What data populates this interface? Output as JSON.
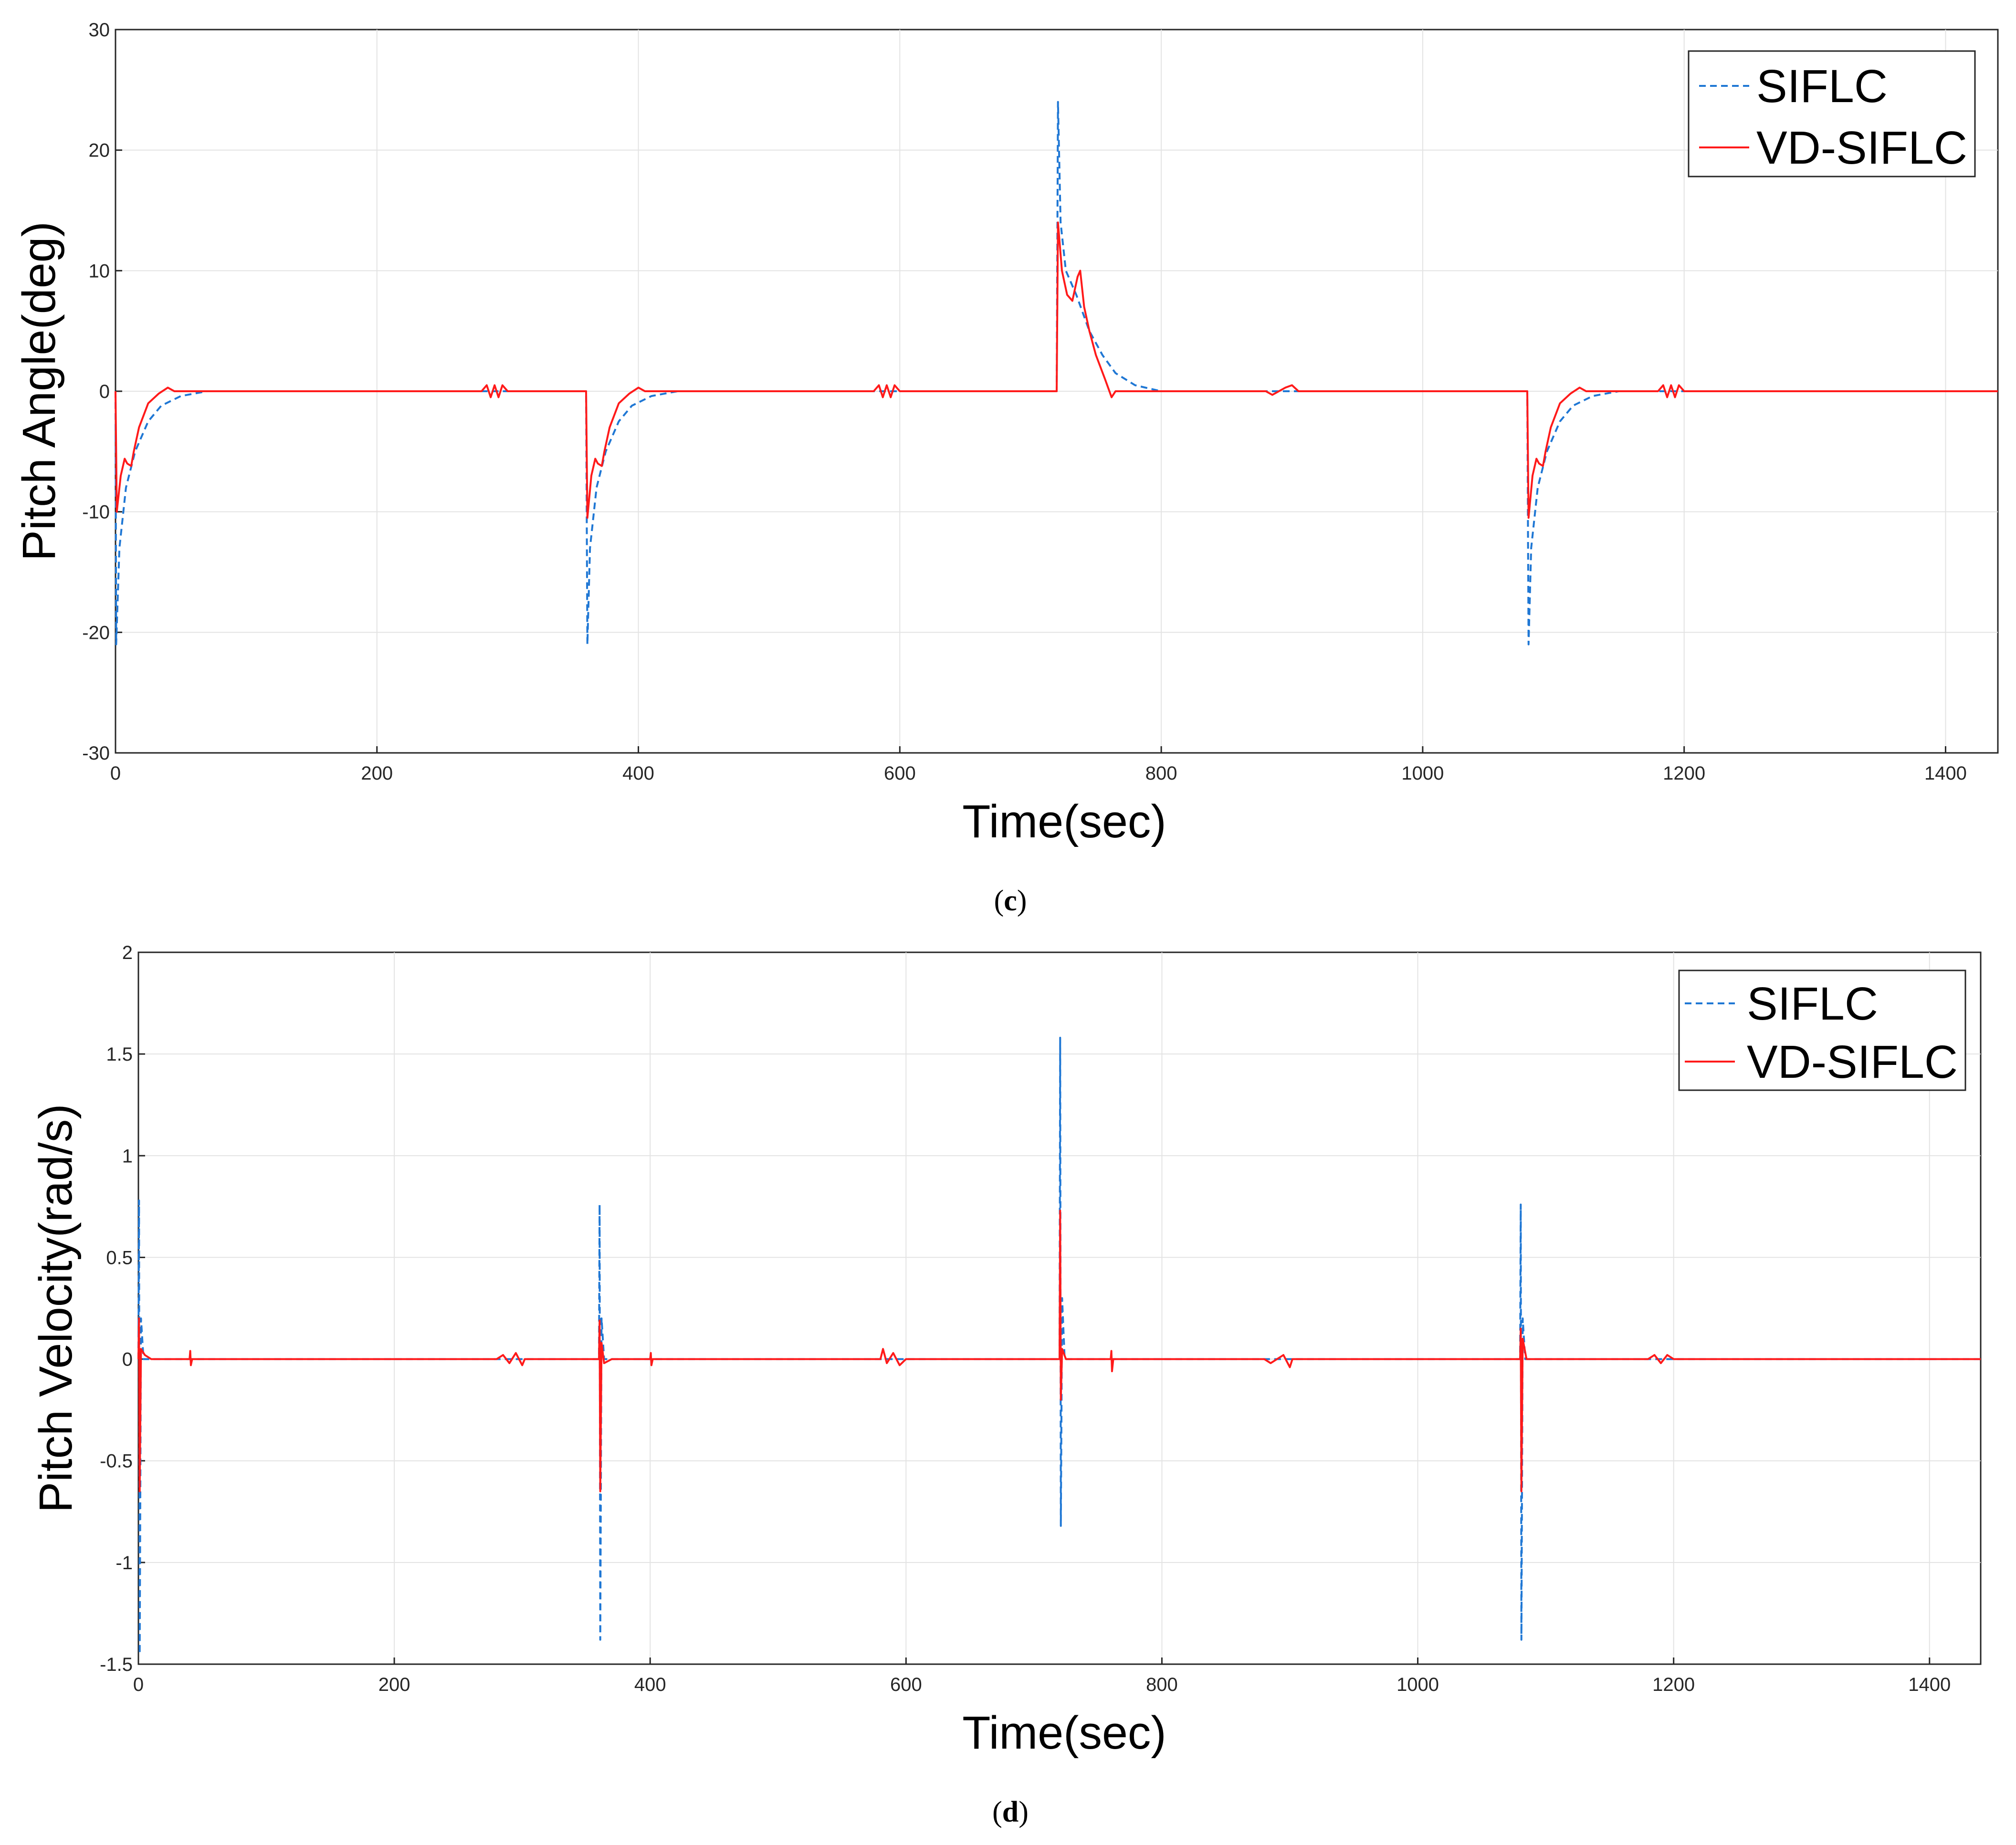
{
  "chart_data": [
    {
      "type": "line",
      "xlabel": "Time(sec)",
      "ylabel": "Pitch Angle(deg)",
      "xlim": [
        0,
        1440
      ],
      "ylim": [
        -30,
        30
      ],
      "xticks": [
        0,
        200,
        400,
        600,
        800,
        1000,
        1200,
        1400
      ],
      "yticks": [
        -30,
        -20,
        -10,
        0,
        10,
        20,
        30
      ],
      "grid": true,
      "legend_position": "top-right",
      "caption_prefix": "(",
      "caption_letter": "c",
      "caption_suffix": ")",
      "series": [
        {
          "name": "SIFLC",
          "style": "dashed",
          "color": "#1f77d4",
          "points": [
            [
              0,
              0
            ],
            [
              0.5,
              -21
            ],
            [
              3,
              -13
            ],
            [
              8,
              -8
            ],
            [
              15,
              -5
            ],
            [
              25,
              -2.5
            ],
            [
              35,
              -1.2
            ],
            [
              50,
              -0.4
            ],
            [
              70,
              0
            ],
            [
              360,
              0
            ],
            [
              361,
              -21
            ],
            [
              363,
              -13
            ],
            [
              368,
              -8
            ],
            [
              375,
              -5
            ],
            [
              385,
              -2.5
            ],
            [
              395,
              -1.2
            ],
            [
              410,
              -0.4
            ],
            [
              430,
              0
            ],
            [
              720,
              0
            ],
            [
              721,
              24
            ],
            [
              723,
              14
            ],
            [
              727,
              10
            ],
            [
              735,
              8
            ],
            [
              745,
              5
            ],
            [
              755,
              3
            ],
            [
              765,
              1.5
            ],
            [
              780,
              0.5
            ],
            [
              800,
              0
            ],
            [
              1080,
              0
            ],
            [
              1081,
              -21
            ],
            [
              1083,
              -13
            ],
            [
              1088,
              -8
            ],
            [
              1095,
              -5
            ],
            [
              1105,
              -2.5
            ],
            [
              1115,
              -1.2
            ],
            [
              1130,
              -0.4
            ],
            [
              1150,
              0
            ],
            [
              1440,
              0
            ]
          ]
        },
        {
          "name": "VD-SIFLC",
          "style": "solid",
          "color": "#ff1a1a",
          "points": [
            [
              0,
              0
            ],
            [
              1,
              -10
            ],
            [
              4,
              -7
            ],
            [
              7,
              -5.6
            ],
            [
              9,
              -6
            ],
            [
              12,
              -6.2
            ],
            [
              14,
              -5
            ],
            [
              18,
              -3
            ],
            [
              25,
              -1
            ],
            [
              33,
              -0.2
            ],
            [
              40,
              0.3
            ],
            [
              45,
              0
            ],
            [
              280,
              0
            ],
            [
              284,
              0.5
            ],
            [
              287,
              -0.5
            ],
            [
              290,
              0.5
            ],
            [
              293,
              -0.5
            ],
            [
              296,
              0.5
            ],
            [
              300,
              0
            ],
            [
              360,
              0
            ],
            [
              361,
              -10.5
            ],
            [
              364,
              -7
            ],
            [
              367,
              -5.6
            ],
            [
              369,
              -6
            ],
            [
              372,
              -6.2
            ],
            [
              374,
              -5
            ],
            [
              378,
              -3
            ],
            [
              385,
              -1
            ],
            [
              393,
              -0.2
            ],
            [
              400,
              0.3
            ],
            [
              405,
              0
            ],
            [
              580,
              0
            ],
            [
              584,
              0.5
            ],
            [
              587,
              -0.5
            ],
            [
              590,
              0.5
            ],
            [
              593,
              -0.5
            ],
            [
              596,
              0.5
            ],
            [
              600,
              0
            ],
            [
              720,
              0
            ],
            [
              721,
              14
            ],
            [
              724,
              10
            ],
            [
              728,
              8
            ],
            [
              732,
              7.5
            ],
            [
              736,
              9.5
            ],
            [
              738,
              10
            ],
            [
              741,
              7
            ],
            [
              745,
              5
            ],
            [
              750,
              3
            ],
            [
              757,
              1
            ],
            [
              762,
              -0.5
            ],
            [
              765,
              0
            ],
            [
              880,
              0
            ],
            [
              885,
              -0.3
            ],
            [
              895,
              0.3
            ],
            [
              900,
              0.5
            ],
            [
              905,
              0
            ],
            [
              1080,
              0
            ],
            [
              1081,
              -10.5
            ],
            [
              1084,
              -7
            ],
            [
              1087,
              -5.6
            ],
            [
              1089,
              -6
            ],
            [
              1092,
              -6.2
            ],
            [
              1094,
              -5
            ],
            [
              1098,
              -3
            ],
            [
              1105,
              -1
            ],
            [
              1113,
              -0.2
            ],
            [
              1120,
              0.3
            ],
            [
              1125,
              0
            ],
            [
              1180,
              0
            ],
            [
              1184,
              0.5
            ],
            [
              1187,
              -0.5
            ],
            [
              1190,
              0.5
            ],
            [
              1193,
              -0.5
            ],
            [
              1196,
              0.5
            ],
            [
              1200,
              0
            ],
            [
              1440,
              0
            ]
          ]
        }
      ]
    },
    {
      "type": "line",
      "xlabel": "Time(sec)",
      "ylabel": "Pitch Velocity(rad/s)",
      "xlim": [
        0,
        1440
      ],
      "ylim": [
        -1.5,
        2
      ],
      "xticks": [
        0,
        200,
        400,
        600,
        800,
        1000,
        1200,
        1400
      ],
      "yticks": [
        -1.5,
        -1,
        -0.5,
        0,
        0.5,
        1,
        1.5,
        2
      ],
      "grid": true,
      "legend_position": "top-right",
      "caption_prefix": "(",
      "caption_letter": "d",
      "caption_suffix": ")",
      "series": [
        {
          "name": "SIFLC",
          "style": "dashed",
          "color": "#1f77d4",
          "points": [
            [
              0,
              0
            ],
            [
              0.5,
              0.78
            ],
            [
              1,
              -1.45
            ],
            [
              2,
              0.2
            ],
            [
              4,
              0
            ],
            [
              360,
              0
            ],
            [
              360.5,
              0.76
            ],
            [
              361,
              -1.38
            ],
            [
              362,
              0.2
            ],
            [
              364,
              0
            ],
            [
              720,
              0
            ],
            [
              720.5,
              1.58
            ],
            [
              721,
              -0.82
            ],
            [
              722,
              0.3
            ],
            [
              724,
              0
            ],
            [
              1080,
              0
            ],
            [
              1080.5,
              0.76
            ],
            [
              1081,
              -1.38
            ],
            [
              1082,
              0.2
            ],
            [
              1084,
              0
            ],
            [
              1440,
              0
            ]
          ]
        },
        {
          "name": "VD-SIFLC",
          "style": "solid",
          "color": "#ff1a1a",
          "points": [
            [
              0,
              0
            ],
            [
              0.5,
              0.2
            ],
            [
              1,
              -0.65
            ],
            [
              2,
              0.05
            ],
            [
              5,
              0.02
            ],
            [
              10,
              0
            ],
            [
              40,
              0
            ],
            [
              40.5,
              0.04
            ],
            [
              41,
              -0.03
            ],
            [
              42,
              0
            ],
            [
              280,
              0
            ],
            [
              285,
              0.02
            ],
            [
              290,
              -0.02
            ],
            [
              295,
              0.03
            ],
            [
              300,
              -0.03
            ],
            [
              302,
              0
            ],
            [
              360,
              0
            ],
            [
              360.5,
              0.19
            ],
            [
              361,
              -0.65
            ],
            [
              362,
              0.08
            ],
            [
              364,
              -0.02
            ],
            [
              370,
              0
            ],
            [
              400,
              0
            ],
            [
              400.5,
              0.03
            ],
            [
              401,
              -0.03
            ],
            [
              402,
              0
            ],
            [
              580,
              0
            ],
            [
              582,
              0.05
            ],
            [
              585,
              -0.02
            ],
            [
              590,
              0.03
            ],
            [
              595,
              -0.03
            ],
            [
              600,
              0
            ],
            [
              720,
              0
            ],
            [
              720.5,
              0.73
            ],
            [
              721,
              -0.2
            ],
            [
              722,
              0.05
            ],
            [
              725,
              0
            ],
            [
              760,
              0
            ],
            [
              760.5,
              0.04
            ],
            [
              761,
              -0.06
            ],
            [
              762,
              0
            ],
            [
              880,
              0
            ],
            [
              885,
              -0.02
            ],
            [
              895,
              0.02
            ],
            [
              900,
              -0.04
            ],
            [
              902,
              0
            ],
            [
              1080,
              0
            ],
            [
              1080.5,
              0.15
            ],
            [
              1081,
              -0.65
            ],
            [
              1082,
              0.1
            ],
            [
              1085,
              0
            ],
            [
              1180,
              0
            ],
            [
              1185,
              0.02
            ],
            [
              1190,
              -0.02
            ],
            [
              1195,
              0.02
            ],
            [
              1200,
              0
            ],
            [
              1440,
              0
            ]
          ]
        }
      ]
    }
  ]
}
